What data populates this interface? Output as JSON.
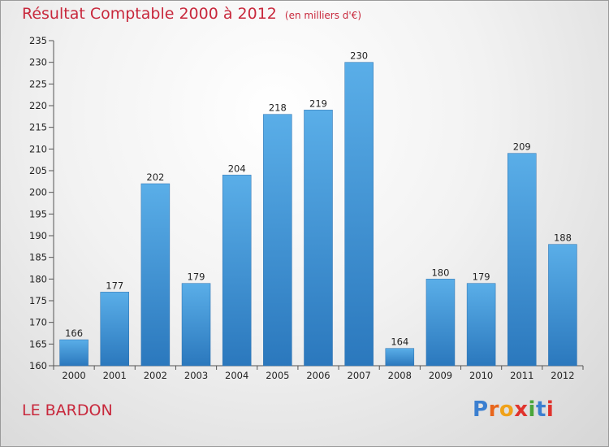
{
  "chart_data": {
    "type": "bar",
    "title": "Résultat Comptable 2000 à 2012",
    "unit_label": "(en milliers d'€)",
    "categories": [
      "2000",
      "2001",
      "2002",
      "2003",
      "2004",
      "2005",
      "2006",
      "2007",
      "2008",
      "2009",
      "2010",
      "2011",
      "2012"
    ],
    "values": [
      166,
      177,
      202,
      179,
      204,
      218,
      219,
      230,
      164,
      180,
      179,
      209,
      188
    ],
    "ylim": [
      160,
      235
    ],
    "ytick_step": 5,
    "xlabel": "",
    "ylabel": "",
    "grid": false,
    "legend": "none",
    "bar_color": "#3d8fd6"
  },
  "location": "LE BARDON",
  "brand": {
    "text": "Proxiti",
    "letter_colors": [
      "#3b7fd0",
      "#e8661c",
      "#f0a21a",
      "#e0332d",
      "#4aa63b",
      "#3b7fd0",
      "#e0332d"
    ]
  }
}
